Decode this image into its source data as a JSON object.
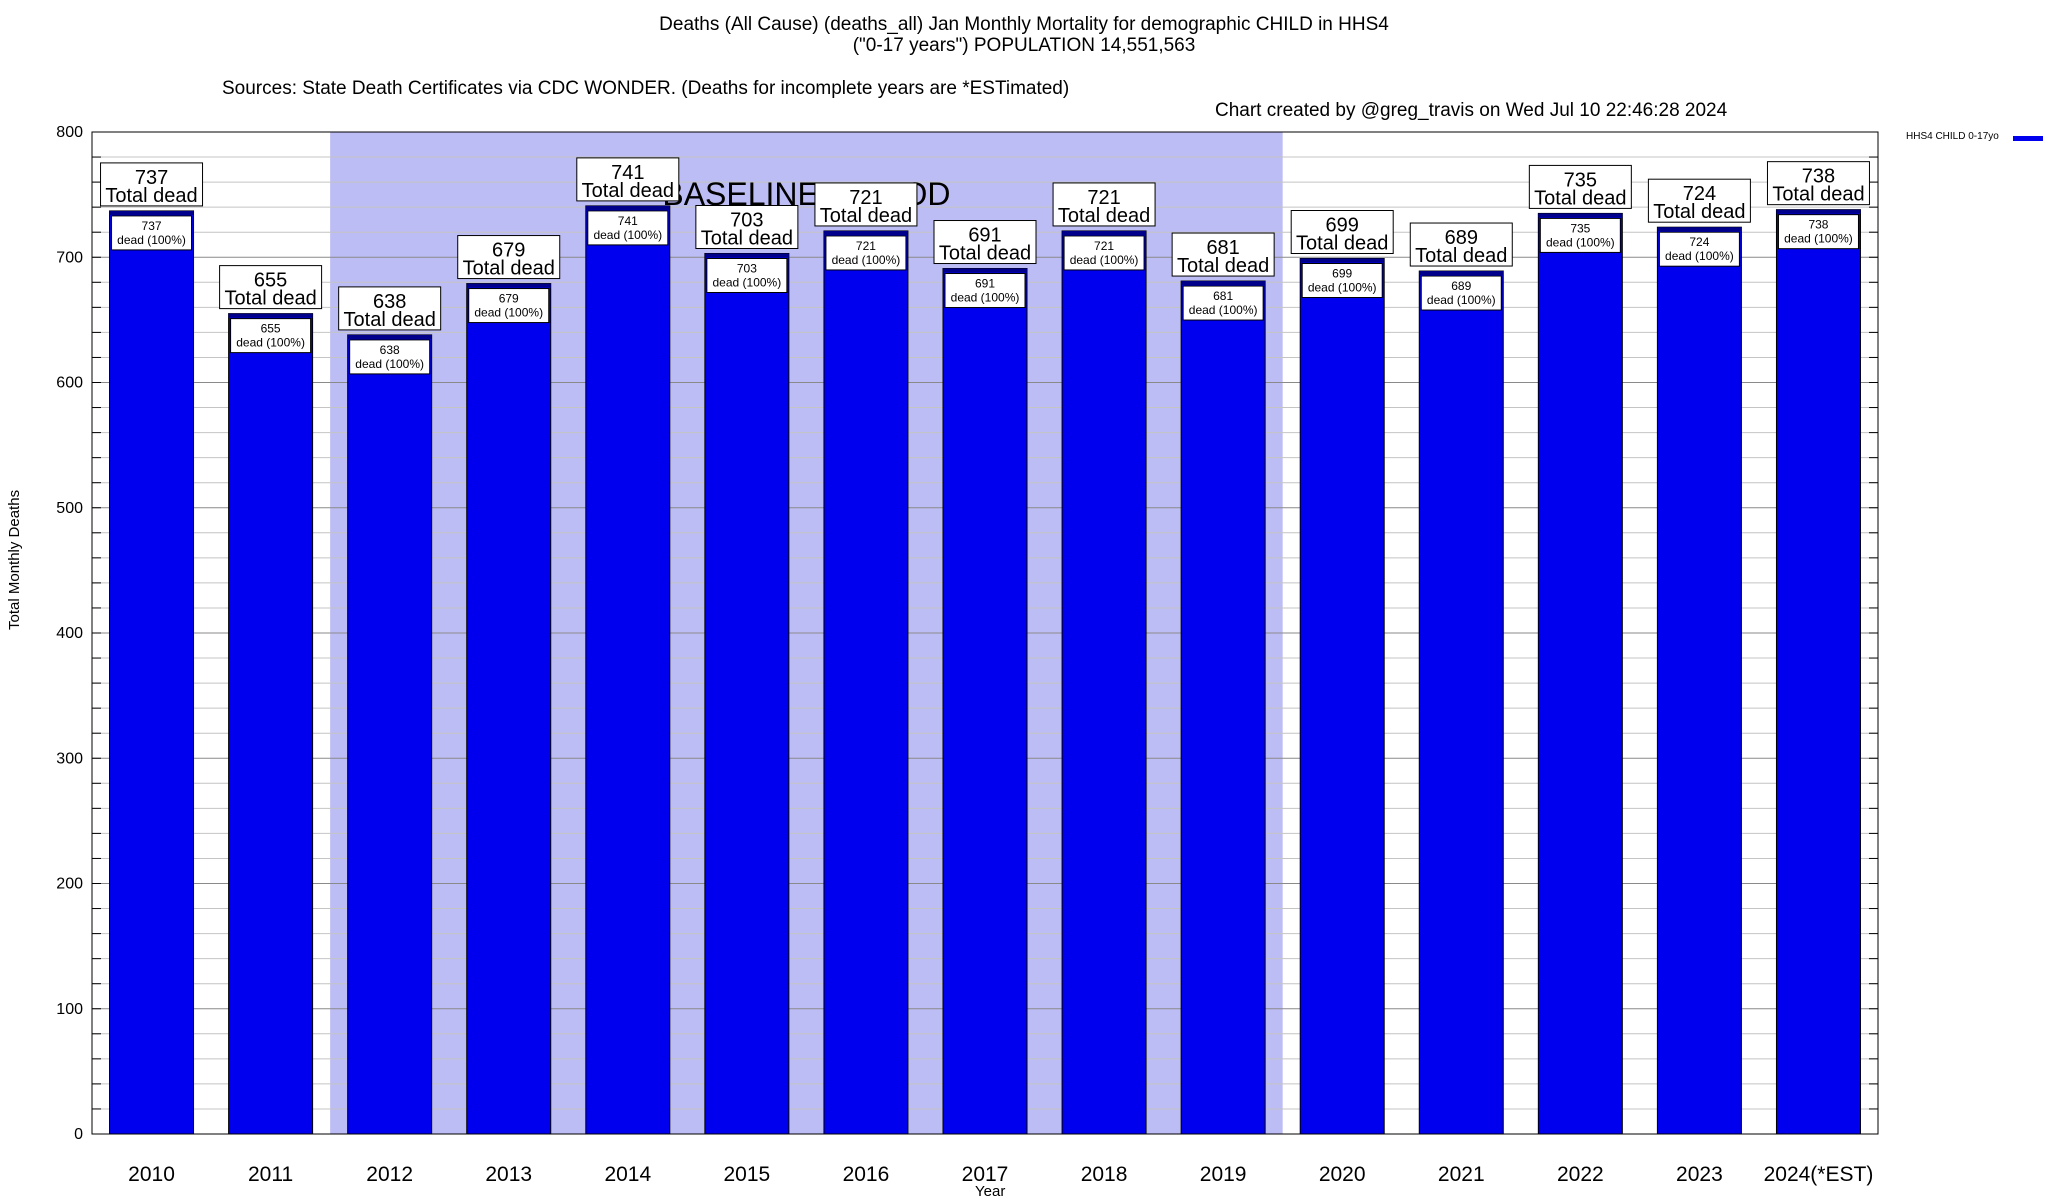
{
  "chart_data": {
    "type": "bar",
    "title_lines": [
      "Deaths (All Cause) (deaths_all) Jan Monthly Mortality for demographic CHILD in HHS4",
      "(\"0-17 years\") POPULATION 14,551,563"
    ],
    "sources": "Sources: State Death Certificates via CDC WONDER. (Deaths for incomplete years are *ESTimated)",
    "credit": "Chart created by @greg_travis on Wed Jul 10 22:46:28 2024",
    "xlabel": "Year",
    "ylabel": "Total Monthly Deaths",
    "ylim": [
      0,
      800
    ],
    "yticks": [
      0,
      100,
      200,
      300,
      400,
      500,
      600,
      700,
      800
    ],
    "categories": [
      "2010",
      "2011",
      "2012",
      "2013",
      "2014",
      "2015",
      "2016",
      "2017",
      "2018",
      "2019",
      "2020",
      "2021",
      "2022",
      "2023",
      "2024(*EST)"
    ],
    "series": [
      {
        "name": "HHS4 CHILD 0-17yo",
        "color": "#0000ee",
        "values": [
          737,
          655,
          638,
          679,
          741,
          703,
          721,
          691,
          721,
          681,
          699,
          689,
          735,
          724,
          738
        ]
      }
    ],
    "top_label": "Total dead",
    "inner_label": "dead (100%)",
    "baseline": {
      "label": "BASELINE PERIOD",
      "from": "2012",
      "to": "2019",
      "color": "#bdbdf5"
    },
    "legend_position": "top-right",
    "grid": true
  }
}
